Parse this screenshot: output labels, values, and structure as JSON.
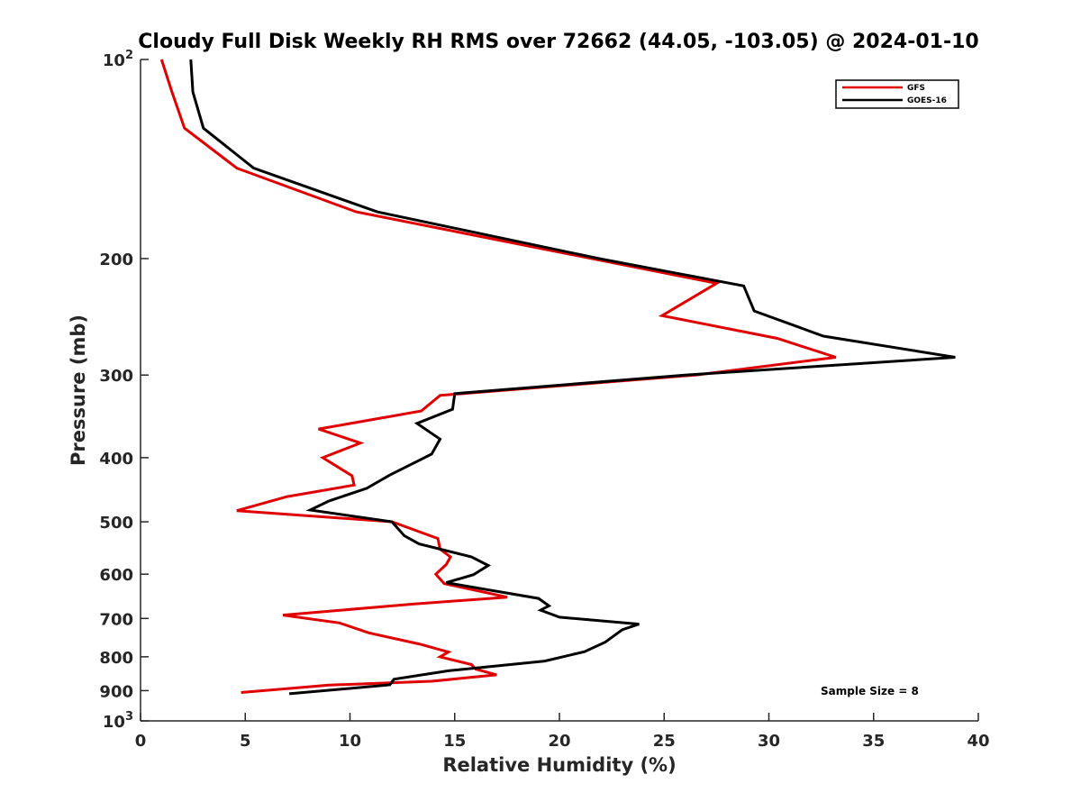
{
  "chart_data": {
    "type": "line",
    "title": "Cloudy Full Disk Weekly RH RMS over 72662 (44.05, -103.05) @ 2024-01-10",
    "xlabel": "Relative Humidity (%)",
    "ylabel": "Pressure (mb)",
    "xlim": [
      0,
      40
    ],
    "ylim": [
      100,
      1000
    ],
    "y_scale": "log",
    "y_reversed": true,
    "x_ticks": [
      0,
      5,
      10,
      15,
      20,
      25,
      30,
      35,
      40
    ],
    "y_ticks": [
      {
        "value": 100,
        "label": "10",
        "sup": "2"
      },
      {
        "value": 200,
        "label": "200",
        "sup": ""
      },
      {
        "value": 300,
        "label": "300",
        "sup": ""
      },
      {
        "value": 400,
        "label": "400",
        "sup": ""
      },
      {
        "value": 500,
        "label": "500",
        "sup": ""
      },
      {
        "value": 600,
        "label": "600",
        "sup": ""
      },
      {
        "value": 700,
        "label": "700",
        "sup": ""
      },
      {
        "value": 800,
        "label": "800",
        "sup": ""
      },
      {
        "value": 900,
        "label": "900",
        "sup": ""
      },
      {
        "value": 1000,
        "label": "10",
        "sup": "3"
      }
    ],
    "grid": false,
    "legend_position": "top-right",
    "annotation": "Sample Size = 8",
    "series": [
      {
        "name": "GFS",
        "color": "#e00000",
        "points": [
          [
            1.0,
            100
          ],
          [
            1.5,
            112
          ],
          [
            2.1,
            127
          ],
          [
            4.6,
            146
          ],
          [
            10.3,
            170
          ],
          [
            27.5,
            218
          ],
          [
            24.9,
            244
          ],
          [
            30.4,
            264
          ],
          [
            33.2,
            282
          ],
          [
            26.5,
            300
          ],
          [
            14.3,
            322
          ],
          [
            13.4,
            340
          ],
          [
            8.5,
            362
          ],
          [
            10.5,
            380
          ],
          [
            8.7,
            400
          ],
          [
            10.1,
            426
          ],
          [
            10.2,
            440
          ],
          [
            7.0,
            458
          ],
          [
            4.6,
            481
          ],
          [
            12.0,
            500
          ],
          [
            14.2,
            530
          ],
          [
            14.3,
            550
          ],
          [
            14.8,
            565
          ],
          [
            14.6,
            580
          ],
          [
            14.1,
            600
          ],
          [
            14.5,
            620
          ],
          [
            17.5,
            650
          ],
          [
            13.0,
            666
          ],
          [
            6.8,
            692
          ],
          [
            9.5,
            711
          ],
          [
            10.9,
            736
          ],
          [
            13.3,
            765
          ],
          [
            14.7,
            787
          ],
          [
            14.3,
            800
          ],
          [
            15.8,
            822
          ],
          [
            16.0,
            835
          ],
          [
            17.0,
            852
          ],
          [
            13.9,
            871
          ],
          [
            9.0,
            883
          ],
          [
            4.8,
            906
          ]
        ]
      },
      {
        "name": "GOES-16",
        "color": "#000000",
        "points": [
          [
            2.4,
            100
          ],
          [
            2.5,
            112
          ],
          [
            3.0,
            127
          ],
          [
            5.4,
            146
          ],
          [
            11.3,
            170
          ],
          [
            21.9,
            200
          ],
          [
            28.8,
            220
          ],
          [
            29.3,
            240
          ],
          [
            32.6,
            262
          ],
          [
            38.9,
            282
          ],
          [
            26.0,
            300
          ],
          [
            15.0,
            320
          ],
          [
            14.9,
            338
          ],
          [
            13.2,
            355
          ],
          [
            14.3,
            375
          ],
          [
            13.9,
            395
          ],
          [
            11.9,
            425
          ],
          [
            10.8,
            445
          ],
          [
            9.0,
            465
          ],
          [
            8.1,
            480
          ],
          [
            12.0,
            500
          ],
          [
            12.6,
            525
          ],
          [
            13.3,
            540
          ],
          [
            15.8,
            565
          ],
          [
            16.6,
            582
          ],
          [
            15.9,
            601
          ],
          [
            14.6,
            618
          ],
          [
            19.0,
            653
          ],
          [
            19.5,
            670
          ],
          [
            19.1,
            680
          ],
          [
            20.0,
            697
          ],
          [
            23.8,
            714
          ],
          [
            23.0,
            728
          ],
          [
            22.2,
            760
          ],
          [
            21.2,
            786
          ],
          [
            19.3,
            812
          ],
          [
            14.7,
            840
          ],
          [
            12.1,
            865
          ],
          [
            11.9,
            882
          ],
          [
            7.1,
            910
          ]
        ]
      }
    ]
  }
}
